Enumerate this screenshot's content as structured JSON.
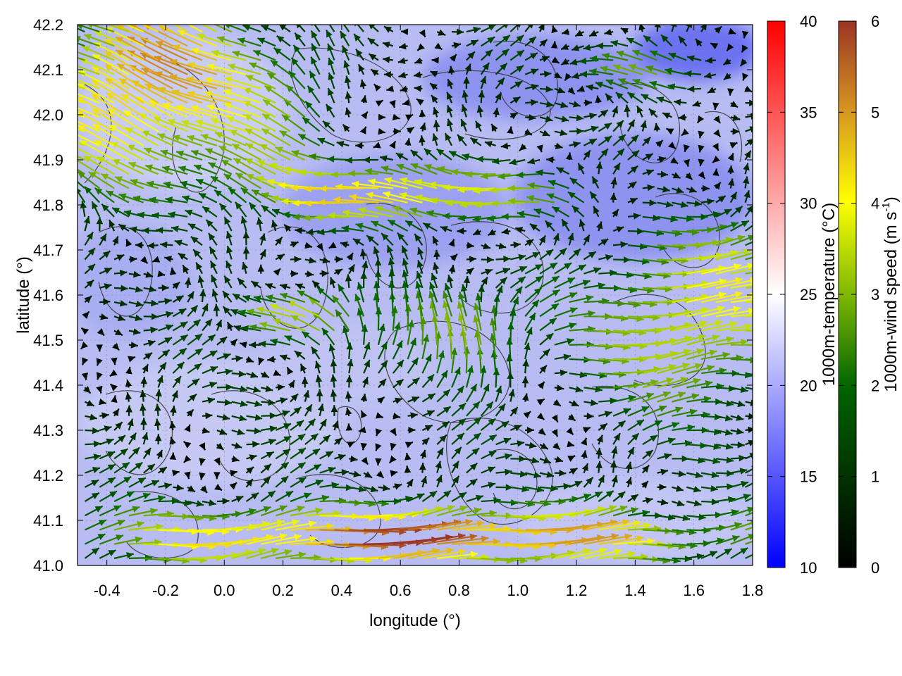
{
  "chart_data": {
    "type": "heatmap",
    "subtype": "wind vectors over temperature field with contours",
    "xlabel": "longitude (°)",
    "ylabel": "latitude (°)",
    "xlim": [
      -0.5,
      1.8
    ],
    "ylim": [
      41.0,
      42.2
    ],
    "xticks": [
      "-0.4",
      "-0.2",
      "0.0",
      "0.2",
      "0.4",
      "0.6",
      "0.8",
      "1.0",
      "1.2",
      "1.4",
      "1.6",
      "1.8"
    ],
    "xtick_values": [
      -0.4,
      -0.2,
      0.0,
      0.2,
      0.4,
      0.6,
      0.8,
      1.0,
      1.2,
      1.4,
      1.6,
      1.8
    ],
    "yticks": [
      "41.0",
      "41.1",
      "41.2",
      "41.3",
      "41.4",
      "41.5",
      "41.6",
      "41.7",
      "41.8",
      "41.9",
      "42.0",
      "42.1",
      "42.2"
    ],
    "ytick_values": [
      41.0,
      41.1,
      41.2,
      41.3,
      41.4,
      41.5,
      41.6,
      41.7,
      41.8,
      41.9,
      42.0,
      42.1,
      42.2
    ],
    "grid": true,
    "temperature_colorbar": {
      "label": "1000m-temperature (°C)",
      "range": [
        10,
        40
      ],
      "ticks": [
        "10",
        "15",
        "20",
        "25",
        "30",
        "35",
        "40"
      ],
      "tick_values": [
        10,
        15,
        20,
        25,
        30,
        35,
        40
      ],
      "colors": [
        "#0000ff",
        "#ffffff",
        "#ff0000"
      ]
    },
    "windspeed_colorbar": {
      "label_main": "1000m-wind speed (m s",
      "label_sup": "-1",
      "label_end": ")",
      "range": [
        0,
        6
      ],
      "ticks": [
        "0",
        "1",
        "2",
        "3",
        "4",
        "5",
        "6"
      ],
      "tick_values": [
        0,
        1,
        2,
        3,
        4,
        5,
        6
      ],
      "colors": [
        "#000000",
        "#006400",
        "#7fb800",
        "#ffff00",
        "#d89a20",
        "#9b3424"
      ]
    },
    "temperature_field_note": "mostly 17-22 °C, colder (~12-15 °C) near lon 1.5 lat 42.15",
    "wind_regions": [
      {
        "region": "northwest lon -0.5..0.3 lat 41.75..42.2",
        "u": -4.5,
        "v": 1.4,
        "speed": 5.6
      },
      {
        "region": "north-central lon 0.3..1.0 lat 41.75..41.85",
        "u": -5.0,
        "v": 0.2,
        "speed": 5.2
      },
      {
        "region": "south strip lat 41.0..41.1",
        "u": 4.8,
        "v": 0.1,
        "speed": 5.0
      },
      {
        "region": "center lon 0.5..1.0 lat 41.4..41.6",
        "u": -0.3,
        "v": 3.0,
        "speed": 3.5
      },
      {
        "region": "east lon 1.2..1.8 lat 41.35..41.75",
        "u": 3.5,
        "v": 0.1,
        "speed": 3.6
      }
    ]
  }
}
